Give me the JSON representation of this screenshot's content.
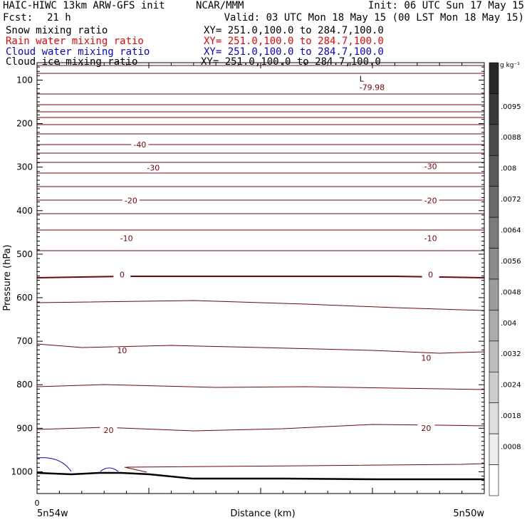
{
  "header": {
    "model": "HAIC-HIWC 13km ARW-GFS init",
    "center": "NCAR/MMM",
    "init": "Init: 06 UTC Sun 17 May 15",
    "fcst_label": "Fcst:",
    "fcst_value": "21 h",
    "valid": "Valid: 03 UTC Mon 18 May 15 (00 LST Mon 18 May 15)"
  },
  "fields": [
    {
      "name": "Snow mixing ratio",
      "xy": "XY= 251.0,100.0 to 284.7,100.0",
      "color": "#000000"
    },
    {
      "name": "Rain water mixing ratio",
      "xy": "XY= 251.0,100.0 to 284.7,100.0",
      "color": "#ff0000"
    },
    {
      "name": "Cloud water mixing ratio",
      "xy": "XY= 251.0,100.0 to 284.7,100.0",
      "color": "#0000ff"
    },
    {
      "name": "Cloud ice mixing ratio",
      "xy": "XY= 251.0,100.0 to 284.7,100.0",
      "color": "#000000"
    }
  ],
  "chart_data": {
    "type": "contour",
    "ylabel": "Pressure (hPa)",
    "xlabel": "Distance (km)",
    "x_start_label": "5n54w",
    "x_end_label": "5n50w",
    "x_origin_label": "0",
    "ylim": [
      1050,
      60
    ],
    "y_ticks": [
      100,
      200,
      300,
      400,
      500,
      600,
      700,
      800,
      900,
      1000
    ],
    "temperature_contour_color": "#800000",
    "min_label": {
      "mark": "L",
      "value": "-79.98",
      "x_frac": 0.74,
      "p": 113
    },
    "isotherm_labels": [
      {
        "text": "-40",
        "x_frac": 0.23,
        "p": 255
      },
      {
        "text": "-30",
        "x_frac": 0.26,
        "p": 308
      },
      {
        "text": "-30",
        "x_frac": 0.88,
        "p": 305
      },
      {
        "text": "-20",
        "x_frac": 0.21,
        "p": 383
      },
      {
        "text": "-20",
        "x_frac": 0.88,
        "p": 383
      },
      {
        "text": "-10",
        "x_frac": 0.2,
        "p": 470
      },
      {
        "text": "-10",
        "x_frac": 0.88,
        "p": 470
      },
      {
        "text": "0",
        "x_frac": 0.19,
        "p": 553
      },
      {
        "text": "0",
        "x_frac": 0.88,
        "p": 553
      },
      {
        "text": "10",
        "x_frac": 0.19,
        "p": 728
      },
      {
        "text": "10",
        "x_frac": 0.87,
        "p": 745
      },
      {
        "text": "20",
        "x_frac": 0.16,
        "p": 911
      },
      {
        "text": "20",
        "x_frac": 0.87,
        "p": 906
      }
    ],
    "colorbar": {
      "unit": "g kg⁻¹",
      "labels": [
        ".0095",
        ".0088",
        ".008",
        ".0072",
        ".0064",
        ".0056",
        ".0048",
        ".004",
        ".0032",
        ".0024",
        ".0018",
        ".0008"
      ],
      "n_bins": 14
    }
  }
}
